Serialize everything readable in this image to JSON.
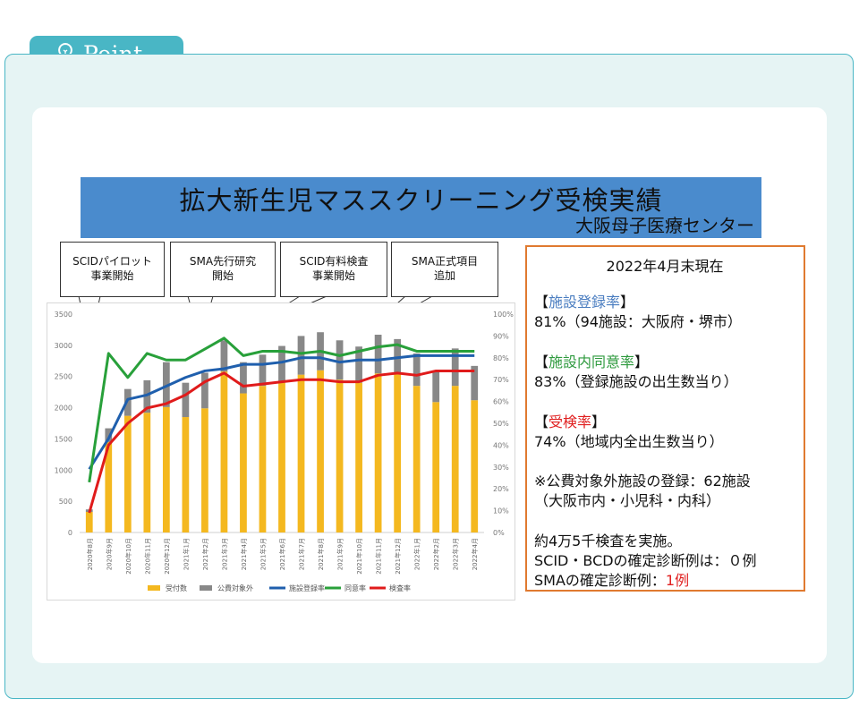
{
  "header": {
    "title": "Point",
    "icon": "lightbulb-icon"
  },
  "banner": {
    "title": "拡大新生児マススクリーニング受検実績",
    "subtitle": "大阪母子医療センター"
  },
  "callouts": [
    {
      "line1": "SCIDパイロット",
      "line2": "事業開始"
    },
    {
      "line1": "SMA先行研究",
      "line2": "開始"
    },
    {
      "line1": "SCID有料検査",
      "line2": "事業開始"
    },
    {
      "line1": "SMA正式項目",
      "line2": "追加"
    }
  ],
  "info": {
    "date": "2022年4月末現在",
    "reg_title": "施設登録率",
    "reg_value": "81%（94施設：大阪府・堺市）",
    "consent_title": "施設内同意率",
    "consent_value": "83%（登録施設の出生数当り）",
    "test_title": "受検率",
    "test_value": "74%（地域内全出生数当り）",
    "note_line1": "※公費対象外施設の登録：62施設",
    "note_line2": "（大阪市内・小児科・内科）",
    "summary_line1": "約4万5千検査を実施。",
    "summary_line2": "SCID・BCDの確定診断例は：０例",
    "summary_line3_prefix": "SMAの確定診断例：",
    "summary_line3_value": "1例",
    "colors": {
      "reg": "#4a7dc0",
      "consent": "#2e9a3e",
      "test": "#e02020"
    }
  },
  "chart_data": {
    "type": "bar",
    "categories": [
      "2020年8月",
      "2020年9月",
      "2020年10月",
      "2020年11月",
      "2020年12月",
      "2021年1月",
      "2021年2月",
      "2021年3月",
      "2021年4月",
      "2021年5月",
      "2021年6月",
      "2021年7月",
      "2021年8月",
      "2021年9月",
      "2021年10月",
      "2021年11月",
      "2021年12月",
      "2022年1月",
      "2022年2月",
      "2022年3月",
      "2022年4月"
    ],
    "y_left": {
      "min": 0,
      "max": 3500,
      "ticks": [
        "0",
        "500",
        "1000",
        "1500",
        "2000",
        "2500",
        "3000",
        "3500"
      ]
    },
    "y_right": {
      "min": 0,
      "max": 100,
      "ticks": [
        "0%",
        "10%",
        "20%",
        "30%",
        "40%",
        "50%",
        "60%",
        "70%",
        "80%",
        "90%",
        "100%"
      ]
    },
    "stacked_bars": [
      {
        "name": "受付数",
        "color": "#f4b81f",
        "values": [
          330,
          1450,
          1870,
          1920,
          2010,
          1850,
          1990,
          2580,
          2230,
          2350,
          2400,
          2530,
          2600,
          2450,
          2400,
          2550,
          2560,
          2350,
          2090,
          2350,
          2120
        ]
      },
      {
        "name": "公費対象外",
        "color": "#888888",
        "values": [
          40,
          220,
          430,
          520,
          720,
          550,
          570,
          500,
          500,
          500,
          590,
          620,
          610,
          630,
          580,
          620,
          540,
          520,
          500,
          600,
          550
        ]
      }
    ],
    "lines": [
      {
        "name": "施設登録率",
        "color": "#1f5fad",
        "values": [
          29,
          43,
          61,
          63,
          67,
          71,
          74,
          75,
          77,
          77,
          78,
          80,
          80,
          78,
          79,
          79,
          80,
          81,
          81,
          81,
          81
        ]
      },
      {
        "name": "同意率",
        "color": "#28a03a",
        "values": [
          23,
          82,
          71,
          82,
          79,
          79,
          84,
          89,
          81,
          83,
          83,
          82,
          83,
          81,
          83,
          85,
          86,
          83,
          83,
          83,
          83
        ]
      },
      {
        "name": "検査率",
        "color": "#e01b1b",
        "values": [
          9,
          40,
          50,
          57,
          59,
          63,
          69,
          73,
          67,
          68,
          69,
          70,
          70,
          69,
          69,
          72,
          73,
          72,
          74,
          74,
          74
        ]
      }
    ],
    "legend_position": "bottom"
  }
}
